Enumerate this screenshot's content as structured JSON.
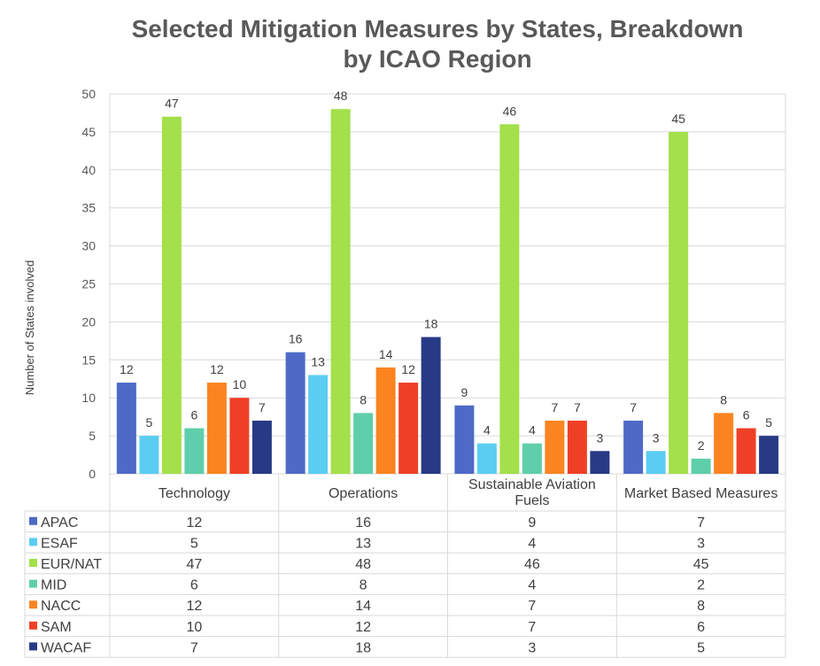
{
  "chart_data": {
    "type": "bar",
    "title": "Selected Mitigation Measures by States, Breakdown by ICAO Region",
    "title_lines": [
      "Selected Mitigation Measures by States, Breakdown",
      "by ICAO Region"
    ],
    "xlabel": "",
    "ylabel": "Number of States involved",
    "ylim": [
      0,
      50
    ],
    "yticks": [
      0,
      5,
      10,
      15,
      20,
      25,
      30,
      35,
      40,
      45,
      50
    ],
    "grid": true,
    "legend": "data-table",
    "categories": [
      "Technology",
      "Operations",
      "Sustainable Aviation Fuels",
      "Market Based Measures"
    ],
    "category_lines": [
      [
        "Technology"
      ],
      [
        "Operations"
      ],
      [
        "Sustainable Aviation",
        "Fuels"
      ],
      [
        "Market Based Measures"
      ]
    ],
    "series": [
      {
        "name": "APAC",
        "color": "#4e6ac6",
        "values": [
          12,
          16,
          9,
          7
        ]
      },
      {
        "name": "ESAF",
        "color": "#5bcdf2",
        "values": [
          5,
          13,
          4,
          3
        ]
      },
      {
        "name": "EUR/NAT",
        "color": "#a3e04a",
        "values": [
          47,
          48,
          46,
          45
        ]
      },
      {
        "name": "MID",
        "color": "#5ecfaa",
        "values": [
          6,
          8,
          4,
          2
        ]
      },
      {
        "name": "NACC",
        "color": "#fb8421",
        "values": [
          12,
          14,
          7,
          8
        ]
      },
      {
        "name": "SAM",
        "color": "#ef4027",
        "values": [
          10,
          12,
          7,
          6
        ]
      },
      {
        "name": "WACAF",
        "color": "#283a86",
        "values": [
          7,
          18,
          3,
          5
        ]
      }
    ]
  }
}
